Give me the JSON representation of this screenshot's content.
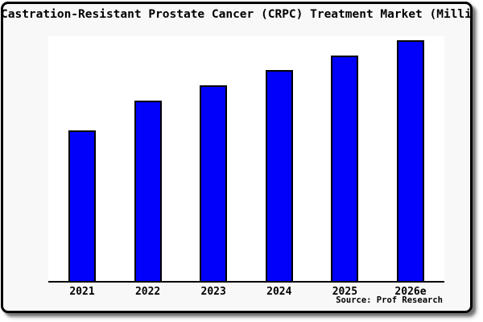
{
  "title": "Castration-Resistant Prostate Cancer (CRPC) Treatment Market (Milli",
  "source_label": "Source: Prof Research",
  "colors": {
    "bar_fill": "#0000fb",
    "bar_border": "#000000",
    "plot_background": "#ffffff",
    "canvas_background": "#f8f8f8",
    "frame_border": "#000000",
    "text": "#000000"
  },
  "chart_data": {
    "type": "bar",
    "title": "Castration-Resistant Prostate Cancer (CRPC) Treatment Market (Milli",
    "categories": [
      "2021",
      "2022",
      "2023",
      "2024",
      "2025",
      "2026e"
    ],
    "values": [
      189,
      226,
      245,
      264,
      282,
      301
    ],
    "value_scale": "relative bar heights in pixels; no y-axis values are shown in the chart",
    "values_relative_pct_of_max": [
      62.8,
      75.1,
      81.4,
      87.7,
      93.7,
      100
    ],
    "xlabel": "",
    "ylabel": "",
    "grid": false,
    "legend": false,
    "y_axis_shown": false,
    "annotation": "Source: Prof Research"
  }
}
